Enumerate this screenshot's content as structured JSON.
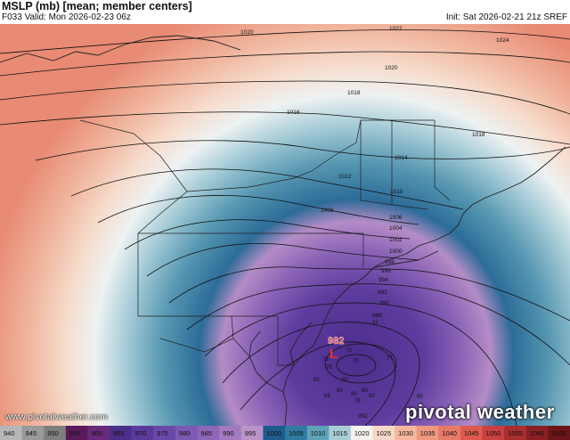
{
  "header": {
    "title": "MSLP (mb) [mean; member centers]",
    "valid": "F033 Valid: Mon 2026-02-23 06z",
    "init": "Init: Sat 2026-02-21 21z SREF"
  },
  "watermark": {
    "url": "www.pivotalweather.com",
    "brand": "pivotal weather"
  },
  "low": {
    "symbol": "L",
    "value": "982"
  },
  "isobars": [
    "1024",
    "1022",
    "1020",
    "1020",
    "1018",
    "1018",
    "1016",
    "1014",
    "1012",
    "1010",
    "1008",
    "1006",
    "1004",
    "1002",
    "1000",
    "998",
    "996",
    "994",
    "992",
    "990",
    "988",
    "992"
  ],
  "member_centers": [
    "81",
    "73",
    "73",
    "77",
    "77",
    "78",
    "80",
    "80",
    "82",
    "83",
    "80",
    "78",
    "80",
    "82",
    "90"
  ],
  "colorbar": {
    "labels": [
      "940",
      "945",
      "950",
      "955",
      "960",
      "965",
      "970",
      "975",
      "980",
      "985",
      "990",
      "995",
      "1000",
      "1005",
      "1010",
      "1015",
      "1020",
      "1025",
      "1030",
      "1035",
      "1040",
      "1045",
      "1050",
      "1055",
      "1060",
      "1065"
    ],
    "colors": [
      "#b7b7b7",
      "#9a9a9a",
      "#7e7e7e",
      "#5a1a5a",
      "#6a2a7a",
      "#4a2e8a",
      "#5b3a9c",
      "#6a4aa8",
      "#7a5ab2",
      "#8e66b8",
      "#a27ac0",
      "#b894c8",
      "#1f5c8c",
      "#2e7aa0",
      "#5ea2b8",
      "#a8cdd6",
      "#f5f2ee",
      "#f9d8c8",
      "#f4b8a0",
      "#ee9880",
      "#e67a66",
      "#de5a50",
      "#c94040",
      "#a82e30",
      "#8a2024",
      "#6c1418"
    ]
  }
}
